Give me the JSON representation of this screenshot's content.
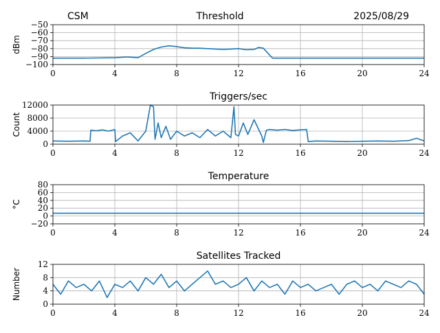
{
  "header": {
    "left_label": "CSM",
    "center_title": "Threshold",
    "right_date": "2025/08/29"
  },
  "style": {
    "line_color": "#1f77b4",
    "grid_color": "#b0b0b0"
  },
  "chart_data": [
    {
      "type": "line",
      "title": "",
      "ylabel": "dBm",
      "xlim": [
        0,
        24
      ],
      "ylim": [
        -100,
        -50
      ],
      "xticks": [
        0,
        4,
        8,
        12,
        16,
        20,
        24
      ],
      "yticks": [
        -100,
        -90,
        -80,
        -70,
        -60,
        -50
      ],
      "xtick_labels": [
        "0",
        "4",
        "8",
        "12",
        "16",
        "20",
        "24"
      ],
      "ytick_labels": [
        "−100",
        "−90",
        "−80",
        "−70",
        "−60",
        "−50"
      ],
      "grid": true,
      "series": [
        {
          "x": [
            0,
            2,
            4,
            4.8,
            5.5,
            6,
            6.5,
            7,
            7.5,
            8,
            8.5,
            9,
            9.5,
            10,
            10.5,
            11,
            11.5,
            12,
            12.5,
            13,
            13.3,
            13.6,
            14,
            14.2,
            16,
            20,
            24
          ],
          "y": [
            -92,
            -92,
            -91.5,
            -90.5,
            -91.5,
            -86,
            -81,
            -78,
            -76.5,
            -77.5,
            -79,
            -79.5,
            -79.5,
            -80,
            -80.5,
            -81,
            -80.5,
            -80,
            -81.5,
            -81,
            -78.5,
            -79.5,
            -88,
            -92,
            -92,
            -92,
            -92
          ]
        }
      ]
    },
    {
      "type": "line",
      "title": "Triggers/sec",
      "ylabel": "Count",
      "xlim": [
        0,
        24
      ],
      "ylim": [
        0,
        12000
      ],
      "xticks": [
        0,
        4,
        8,
        12,
        16,
        20,
        24
      ],
      "yticks": [
        0,
        4000,
        8000,
        12000
      ],
      "xtick_labels": [
        "0",
        "4",
        "8",
        "12",
        "16",
        "20",
        "24"
      ],
      "ytick_labels": [
        "0",
        "4000",
        "8000",
        "12000"
      ],
      "grid": true,
      "series": [
        {
          "x": [
            0,
            1,
            2,
            2.4,
            2.45,
            2.8,
            3.2,
            3.6,
            4,
            4.05,
            4.5,
            5,
            5.5,
            6,
            6.3,
            6.5,
            6.6,
            6.8,
            7,
            7.3,
            7.6,
            8,
            8.5,
            9,
            9.5,
            10,
            10.5,
            11,
            11.5,
            11.7,
            11.8,
            12,
            12.3,
            12.6,
            13,
            13.5,
            13.6,
            13.8,
            14,
            14.5,
            15,
            15.5,
            16,
            16.4,
            16.5,
            17,
            18,
            19,
            20,
            21,
            22,
            23,
            23.5,
            24
          ],
          "y": [
            1000,
            900,
            1000,
            900,
            4300,
            4100,
            4400,
            4000,
            4500,
            800,
            2500,
            3500,
            1000,
            4000,
            12000,
            11500,
            1500,
            6500,
            2000,
            5500,
            1500,
            4000,
            2500,
            3500,
            2000,
            4500,
            2500,
            4000,
            2000,
            11500,
            3000,
            2500,
            6500,
            3000,
            7500,
            2500,
            500,
            4300,
            4500,
            4300,
            4500,
            4200,
            4400,
            4500,
            800,
            1000,
            900,
            800,
            900,
            1000,
            900,
            1100,
            1800,
            1000
          ]
        }
      ]
    },
    {
      "type": "line",
      "title": "Temperature",
      "ylabel": "°C",
      "xlim": [
        0,
        24
      ],
      "ylim": [
        -20,
        80
      ],
      "xticks": [
        0,
        4,
        8,
        12,
        16,
        20,
        24
      ],
      "yticks": [
        -20,
        0,
        20,
        40,
        60,
        80
      ],
      "xtick_labels": [
        "0",
        "4",
        "8",
        "12",
        "16",
        "20",
        "24"
      ],
      "ytick_labels": [
        "−20",
        "0",
        "20",
        "40",
        "60",
        "80"
      ],
      "grid": true,
      "series": [
        {
          "x": [
            0,
            24
          ],
          "y": [
            7,
            7
          ]
        }
      ]
    },
    {
      "type": "line",
      "title": "Satellites Tracked",
      "ylabel": "Number",
      "xlim": [
        0,
        24
      ],
      "ylim": [
        0,
        12
      ],
      "xticks": [
        0,
        4,
        8,
        12,
        16,
        20,
        24
      ],
      "yticks": [
        0,
        4,
        8,
        12
      ],
      "xtick_labels": [
        "0",
        "4",
        "8",
        "12",
        "16",
        "20",
        "24"
      ],
      "ytick_labels": [
        "0",
        "4",
        "8",
        "12"
      ],
      "grid": true,
      "series": [
        {
          "x": [
            0,
            0.5,
            1,
            1.5,
            2,
            2.5,
            3,
            3.5,
            4,
            4.5,
            5,
            5.5,
            6,
            6.5,
            7,
            7.5,
            8,
            8.5,
            9,
            9.5,
            10,
            10.5,
            11,
            11.5,
            12,
            12.5,
            13,
            13.5,
            14,
            14.5,
            15,
            15.5,
            16,
            16.5,
            17,
            17.5,
            18,
            18.5,
            19,
            19.5,
            20,
            20.5,
            21,
            21.5,
            22,
            22.5,
            23,
            23.5,
            24
          ],
          "y": [
            6,
            3,
            7,
            5,
            6,
            4,
            7,
            2,
            6,
            5,
            7,
            4,
            8,
            6,
            9,
            5,
            7,
            4,
            6,
            8,
            10,
            6,
            7,
            5,
            6,
            8,
            4,
            7,
            5,
            6,
            3,
            7,
            5,
            6,
            4,
            5,
            6,
            3,
            6,
            7,
            5,
            6,
            4,
            7,
            6,
            5,
            7,
            6,
            3
          ]
        }
      ]
    }
  ]
}
